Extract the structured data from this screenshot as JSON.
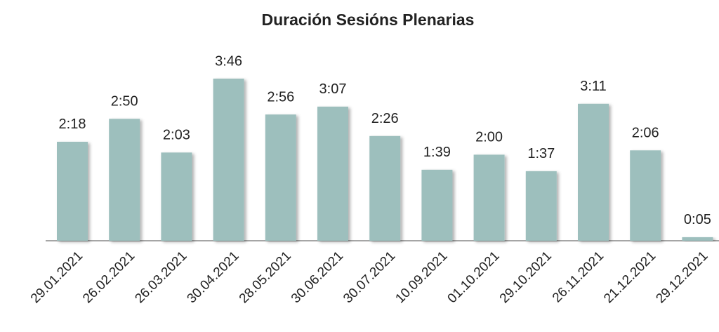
{
  "chart_data": {
    "type": "bar",
    "title": "Duración Sesións Plenarias",
    "categories": [
      "29.01.2021",
      "26.02.2021",
      "26.03.2021",
      "30.04.2021",
      "28.05.2021",
      "30.06.2021",
      "30.07.2021",
      "10.09.2021",
      "01.10.2021",
      "29.10.2021",
      "26.11.2021",
      "21.12.2021",
      "29.12.2021"
    ],
    "values": [
      138,
      170,
      123,
      226,
      176,
      187,
      146,
      99,
      120,
      97,
      191,
      126,
      5
    ],
    "value_labels": [
      "2:18",
      "2:50",
      "2:03",
      "3:46",
      "2:56",
      "3:07",
      "2:26",
      "1:39",
      "2:00",
      "1:37",
      "3:11",
      "2:06",
      "0:05"
    ],
    "color": "#9dbfbd"
  }
}
